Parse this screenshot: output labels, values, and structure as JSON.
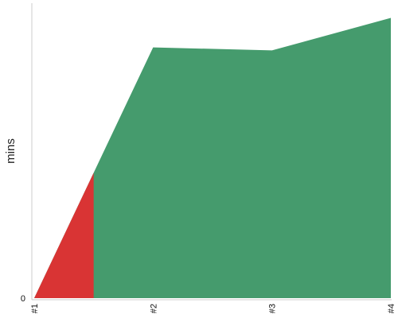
{
  "chart_data": {
    "type": "area",
    "ylabel": "mins",
    "x": [
      "#1",
      "#2",
      "#3",
      "#4"
    ],
    "y_tick_labels": [
      "0"
    ],
    "ylim": [
      0,
      100
    ],
    "grid": false,
    "series": [
      {
        "values": [
          0,
          85,
          84,
          95
        ],
        "color": "#459b6d"
      }
    ],
    "highlight": {
      "x_from": 0,
      "x_to": 0.5,
      "color": "#d93434"
    }
  }
}
